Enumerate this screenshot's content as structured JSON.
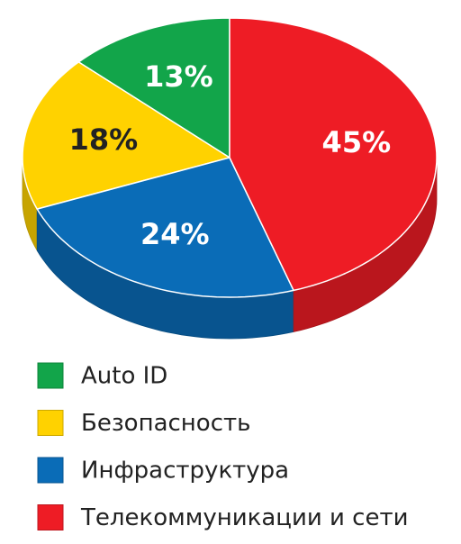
{
  "chart_data": {
    "type": "pie",
    "categories": [
      "Auto ID",
      "Безопасность",
      "Инфраструктура",
      "Телекоммуникации и сети"
    ],
    "values": [
      13,
      18,
      24,
      45
    ],
    "value_labels": [
      "13%",
      "18%",
      "24%",
      "45%"
    ],
    "colors": [
      "#12a54a",
      "#ffd200",
      "#0a6cb7",
      "#ee1c25"
    ]
  }
}
